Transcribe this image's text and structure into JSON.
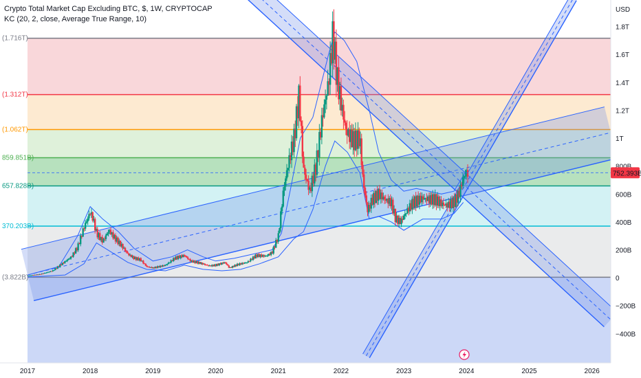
{
  "header": {
    "title": "Crypto Total Market Cap Excluding BTC, $, 1W, CRYPTOCAP",
    "indicator": "KC (20, 2, close, Average True Range, 10)"
  },
  "price_axis": {
    "currency": "USD",
    "last_price": "752.393B",
    "last_price_color": "#f23645"
  },
  "event_icon": "lightning-icon",
  "chart_data": {
    "type": "candlestick",
    "title": "Crypto Total Market Cap Excluding BTC, $, 1W, CRYPTOCAP",
    "x_range": [
      2017.0,
      2026.3
    ],
    "y_range_billions": [
      -610,
      1990
    ],
    "x_ticks": [
      {
        "v": 2017,
        "label": "2017"
      },
      {
        "v": 2018,
        "label": "2018"
      },
      {
        "v": 2019,
        "label": "2019"
      },
      {
        "v": 2020,
        "label": "2020"
      },
      {
        "v": 2021,
        "label": "2021"
      },
      {
        "v": 2022,
        "label": "2022"
      },
      {
        "v": 2023,
        "label": "2023"
      },
      {
        "v": 2024,
        "label": "2024"
      },
      {
        "v": 2025,
        "label": "2025"
      },
      {
        "v": 2026,
        "label": "2026"
      }
    ],
    "y_ticks": [
      {
        "v": 1800,
        "label": "1.8T"
      },
      {
        "v": 1600,
        "label": "1.6T"
      },
      {
        "v": 1400,
        "label": "1.4T"
      },
      {
        "v": 1200,
        "label": "1.2T"
      },
      {
        "v": 1000,
        "label": "1T"
      },
      {
        "v": 800,
        "label": "800B"
      },
      {
        "v": 600,
        "label": "600B"
      },
      {
        "v": 400,
        "label": "400B"
      },
      {
        "v": 200,
        "label": "200B"
      },
      {
        "v": 0,
        "label": "0"
      },
      {
        "v": -200,
        "label": "−200B"
      },
      {
        "v": -400,
        "label": "−400B"
      }
    ],
    "fib_levels": [
      {
        "v": 1716,
        "label": "(1.716T)",
        "color": "#787b86",
        "fill": null
      },
      {
        "v": 1312,
        "label": "(1.312T)",
        "color": "#f23645",
        "fill": "#f7c9cd"
      },
      {
        "v": 1062,
        "label": "(1.062T)",
        "color": "#ff9800",
        "fill": "#fce3c2"
      },
      {
        "v": 859.851,
        "label": "859.851B)",
        "color": "#4caf50",
        "fill": "#d4eccd"
      },
      {
        "v": 657.828,
        "label": "657.828B)",
        "color": "#089981",
        "fill": "#9fd7a8"
      },
      {
        "v": 370.203,
        "label": "370.203B)",
        "color": "#00bcd4",
        "fill": "#c4eef0"
      },
      {
        "v": 3.822,
        "label": "(3.822B)",
        "color": "#787b86",
        "fill": "#e3e4e6"
      }
    ],
    "below_fill": "#c7d4f6",
    "close_series": [
      [
        2017.0,
        14
      ],
      [
        2017.2,
        25
      ],
      [
        2017.4,
        50
      ],
      [
        2017.55,
        100
      ],
      [
        2017.7,
        150
      ],
      [
        2017.8,
        220
      ],
      [
        2017.9,
        360
      ],
      [
        2018.0,
        470
      ],
      [
        2018.04,
        430
      ],
      [
        2018.1,
        320
      ],
      [
        2018.2,
        260
      ],
      [
        2018.3,
        340
      ],
      [
        2018.38,
        290
      ],
      [
        2018.5,
        230
      ],
      [
        2018.6,
        170
      ],
      [
        2018.7,
        140
      ],
      [
        2018.8,
        130
      ],
      [
        2018.9,
        80
      ],
      [
        2019.0,
        70
      ],
      [
        2019.2,
        90
      ],
      [
        2019.35,
        140
      ],
      [
        2019.5,
        160
      ],
      [
        2019.6,
        120
      ],
      [
        2019.75,
        105
      ],
      [
        2019.9,
        85
      ],
      [
        2020.0,
        90
      ],
      [
        2020.15,
        110
      ],
      [
        2020.22,
        70
      ],
      [
        2020.35,
        95
      ],
      [
        2020.5,
        110
      ],
      [
        2020.65,
        160
      ],
      [
        2020.8,
        155
      ],
      [
        2020.9,
        180
      ],
      [
        2021.0,
        300
      ],
      [
        2021.08,
        620
      ],
      [
        2021.15,
        800
      ],
      [
        2021.25,
        1000
      ],
      [
        2021.33,
        1310
      ],
      [
        2021.4,
        780
      ],
      [
        2021.5,
        620
      ],
      [
        2021.6,
        800
      ],
      [
        2021.7,
        1150
      ],
      [
        2021.8,
        1400
      ],
      [
        2021.87,
        1750
      ],
      [
        2021.93,
        1450
      ],
      [
        2022.0,
        1250
      ],
      [
        2022.08,
        1050
      ],
      [
        2022.2,
        980
      ],
      [
        2022.3,
        1000
      ],
      [
        2022.35,
        700
      ],
      [
        2022.42,
        480
      ],
      [
        2022.5,
        560
      ],
      [
        2022.6,
        600
      ],
      [
        2022.7,
        560
      ],
      [
        2022.8,
        540
      ],
      [
        2022.87,
        420
      ],
      [
        2022.95,
        400
      ],
      [
        2023.05,
        480
      ],
      [
        2023.15,
        540
      ],
      [
        2023.3,
        570
      ],
      [
        2023.4,
        560
      ],
      [
        2023.5,
        560
      ],
      [
        2023.6,
        530
      ],
      [
        2023.7,
        520
      ],
      [
        2023.8,
        540
      ],
      [
        2023.88,
        600
      ],
      [
        2023.95,
        720
      ],
      [
        2024.0,
        752
      ]
    ],
    "keltner_upper": [
      [
        2017.0,
        20
      ],
      [
        2017.5,
        80
      ],
      [
        2017.8,
        300
      ],
      [
        2018.0,
        510
      ],
      [
        2018.2,
        420
      ],
      [
        2018.45,
        330
      ],
      [
        2018.7,
        210
      ],
      [
        2019.0,
        120
      ],
      [
        2019.3,
        150
      ],
      [
        2019.55,
        200
      ],
      [
        2019.8,
        150
      ],
      [
        2020.0,
        120
      ],
      [
        2020.3,
        140
      ],
      [
        2020.6,
        170
      ],
      [
        2020.9,
        200
      ],
      [
        2021.05,
        320
      ],
      [
        2021.2,
        650
      ],
      [
        2021.35,
        1000
      ],
      [
        2021.55,
        1150
      ],
      [
        2021.8,
        1600
      ],
      [
        2021.9,
        1760
      ],
      [
        2022.05,
        1700
      ],
      [
        2022.25,
        1550
      ],
      [
        2022.45,
        1200
      ],
      [
        2022.6,
        900
      ],
      [
        2022.8,
        700
      ],
      [
        2023.0,
        620
      ],
      [
        2023.2,
        640
      ],
      [
        2023.4,
        620
      ],
      [
        2023.6,
        600
      ],
      [
        2023.8,
        620
      ],
      [
        2024.0,
        770
      ]
    ],
    "keltner_lower": [
      [
        2017.0,
        5
      ],
      [
        2017.6,
        20
      ],
      [
        2017.9,
        100
      ],
      [
        2018.1,
        250
      ],
      [
        2018.35,
        180
      ],
      [
        2018.6,
        110
      ],
      [
        2018.9,
        60
      ],
      [
        2019.2,
        50
      ],
      [
        2019.5,
        90
      ],
      [
        2019.8,
        60
      ],
      [
        2020.1,
        50
      ],
      [
        2020.4,
        60
      ],
      [
        2020.7,
        100
      ],
      [
        2021.0,
        150
      ],
      [
        2021.25,
        280
      ],
      [
        2021.4,
        330
      ],
      [
        2021.55,
        490
      ],
      [
        2021.75,
        800
      ],
      [
        2021.9,
        980
      ],
      [
        2022.1,
        900
      ],
      [
        2022.3,
        750
      ],
      [
        2022.45,
        420
      ],
      [
        2022.6,
        440
      ],
      [
        2022.8,
        400
      ],
      [
        2023.0,
        340
      ],
      [
        2023.3,
        420
      ],
      [
        2023.6,
        420
      ],
      [
        2023.8,
        460
      ],
      [
        2023.95,
        540
      ]
    ],
    "channels": [
      {
        "name": "rising",
        "x1": 2017.0,
        "y1": 20,
        "x2": 2026.3,
        "y2": 1040,
        "width": 195
      },
      {
        "name": "descending",
        "x1": 2020.0,
        "y1": 2300,
        "x2": 2026.3,
        "y2": -300,
        "width": 95
      },
      {
        "name": "steep",
        "x1": 2022.4,
        "y1": -560,
        "x2": 2025.7,
        "y2": 2000,
        "width": 55
      }
    ]
  }
}
